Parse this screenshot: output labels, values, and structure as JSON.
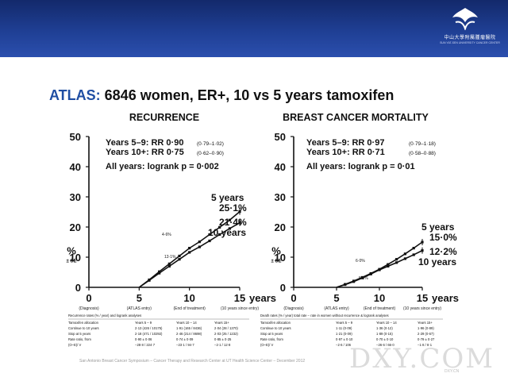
{
  "header": {
    "logo_text": "中山大學附屬腫瘤醫院",
    "logo_sub": "SUN YAT-SEN UNIVERSITY CANCER CENTER"
  },
  "slide_title": {
    "highlight": "ATLAS:",
    "rest": " 6846 women, ER+, 10 vs 5 years tamoxifen"
  },
  "chart_data": [
    {
      "type": "line",
      "title": "RECURRENCE",
      "ylabel": "%",
      "ylabel_sub": "± SE",
      "ylim": [
        0,
        50
      ],
      "xlim": [
        0,
        15
      ],
      "yticks": [
        "0",
        "10",
        "20",
        "30",
        "40",
        "50"
      ],
      "xticks": [
        {
          "value": 0,
          "label": "0",
          "sub": "(Diagnosis)"
        },
        {
          "value": 5,
          "label": "5",
          "sub": "(ATLAS entry)"
        },
        {
          "value": 10,
          "label": "10",
          "sub": "(End of treatment)"
        },
        {
          "value": 15,
          "label": "15",
          "sub": "(10 years since entry)"
        }
      ],
      "xunit": "years",
      "stats": [
        "Years 5–9: RR 0·90",
        "Years 10+: RR 0·75",
        "All years: logrank p = 0·002"
      ],
      "stats_ci": [
        "(0·79–1·02)",
        "(0·62–0·90)"
      ],
      "series": [
        {
          "name": "5 years",
          "final_label": "25·1%",
          "x": [
            5,
            6,
            7,
            8,
            9,
            10,
            11,
            12,
            13,
            14,
            15
          ],
          "y": [
            0,
            2.5,
            5.2,
            7.8,
            10.4,
            13.0,
            15.1,
            17.5,
            19.9,
            22.3,
            25.1
          ]
        },
        {
          "name": "10 years",
          "final_label": "21·4%",
          "x": [
            5,
            6,
            7,
            8,
            9,
            10,
            11,
            12,
            13,
            14,
            15
          ],
          "y": [
            0,
            2.3,
            4.7,
            7.0,
            9.3,
            11.6,
            13.4,
            15.4,
            17.5,
            19.5,
            21.4
          ]
        }
      ],
      "annotations": [
        "4·6%",
        "13·1%"
      ]
    },
    {
      "type": "line",
      "title": "BREAST CANCER MORTALITY",
      "ylabel": "%",
      "ylabel_sub": "± SE",
      "ylim": [
        0,
        50
      ],
      "xlim": [
        0,
        15
      ],
      "yticks": [
        "0",
        "10",
        "20",
        "30",
        "40",
        "50"
      ],
      "xticks": [
        {
          "value": 0,
          "label": "0",
          "sub": "(Diagnosis)"
        },
        {
          "value": 5,
          "label": "5",
          "sub": "(ATLAS entry)"
        },
        {
          "value": 10,
          "label": "10",
          "sub": "(End of treatment)"
        },
        {
          "value": 15,
          "label": "15",
          "sub": "(10 years since entry)"
        }
      ],
      "xunit": "years",
      "stats": [
        "Years 5–9: RR 0·97",
        "Years 10+: RR 0·71",
        "All years: logrank p = 0·01"
      ],
      "stats_ci": [
        "(0·79–1·18)",
        "(0·58–0·88)"
      ],
      "series": [
        {
          "name": "5 years",
          "final_label": "15·0%",
          "x": [
            5,
            6,
            7,
            8,
            9,
            10,
            11,
            12,
            13,
            14,
            15
          ],
          "y": [
            0,
            1.0,
            2.1,
            3.3,
            4.6,
            6.0,
            7.6,
            9.3,
            11.1,
            13.0,
            15.0
          ]
        },
        {
          "name": "10 years",
          "final_label": "12·2%",
          "x": [
            5,
            6,
            7,
            8,
            9,
            10,
            11,
            12,
            13,
            14,
            15
          ],
          "y": [
            0,
            0.9,
            1.9,
            3.1,
            4.4,
            5.8,
            7.0,
            8.2,
            9.5,
            10.8,
            12.2
          ]
        }
      ],
      "annotations": [
        "6·0%",
        "5·8%"
      ]
    }
  ],
  "tables": [
    {
      "caption": "Recurrence rates (% / year) and logrank analyses",
      "columns": [
        "Tamoxifen allocation",
        "Years 5 – 9",
        "Years 10 – 14",
        "Years 15+"
      ],
      "rows": [
        [
          "Continue to 10 years",
          "2·13 (426 / 10175)",
          "1·91 (165 / 8436)",
          "2·04 (28 / 1370)"
        ],
        [
          "Stop at 5 years",
          "2·18 (471 / 10292)",
          "2·46 (214 / 8698)",
          "2·03 (25 / 1232)"
        ],
        [
          "Rate ratio, from",
          "0·90 ± 0·06",
          "0·74 ± 0·09",
          "0·85 ± 0·25"
        ],
        [
          "(O–E)/ V",
          "−28·8 / 224·7",
          "−23·1 / 94·7",
          "−2·1 / 12·8"
        ]
      ]
    },
    {
      "caption": "Death rates (% / year) total rate − rate in women without recurrence & logrank analyses",
      "columns": [
        "Tamoxifen allocation",
        "Years 5 – 9",
        "Years 10 – 14",
        "Years 15+"
      ],
      "rows": [
        [
          "Continue to 10 years",
          "1·11 (0·09)",
          "1·36 (0·12)",
          "1·96 (0·89)"
        ],
        [
          "Stop at 5 years",
          "1·21 (0·09)",
          "1·89 (0·15)",
          "2·29 (0·67)"
        ],
        [
          "Rate ratio, from",
          "0·97 ± 0·10",
          "0·70 ± 0·10",
          "0·79 ± 0·27"
        ],
        [
          "(O–E)/ V",
          "−2·6 / 106",
          "−26·6 / 66·0",
          "−1·8 / 8·1"
        ]
      ]
    }
  ],
  "footer": "San Antonio Breast Cancer Symposium – Cancer Therapy and Research Center at UT Health Science Center – December 2012",
  "watermark": "DXY.COM",
  "watermark_sub": "DXY.CN"
}
